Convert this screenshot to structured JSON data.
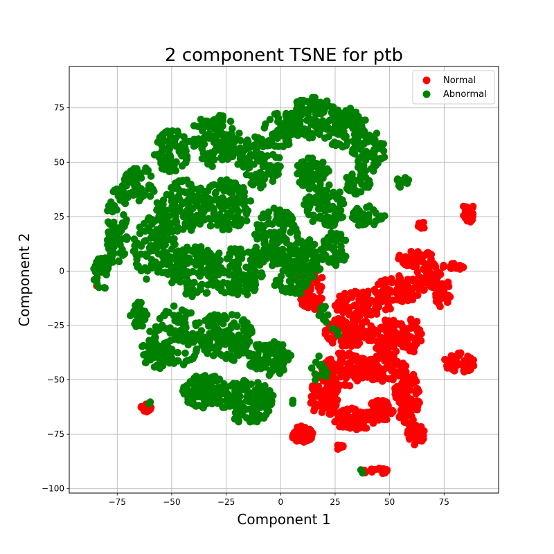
{
  "chart_data": {
    "type": "scatter",
    "title": "2 component TSNE for ptb",
    "xlabel": "Component 1",
    "ylabel": "Component 2",
    "xlim": [
      -97,
      100
    ],
    "ylim": [
      -102,
      94
    ],
    "xticks": [
      -75,
      -50,
      -25,
      0,
      25,
      50,
      75
    ],
    "yticks": [
      -100,
      -75,
      -50,
      -25,
      0,
      25,
      50,
      75
    ],
    "grid": true,
    "legend_position": "top-right",
    "series": [
      {
        "name": "Normal",
        "color": "#ff0000",
        "clusters": [
          {
            "cx": 14,
            "cy": -8,
            "rx": 6,
            "ry": 10,
            "n": 70
          },
          {
            "cx": 38,
            "cy": -15,
            "rx": 14,
            "ry": 6,
            "n": 90
          },
          {
            "cx": 32,
            "cy": -28,
            "rx": 12,
            "ry": 7,
            "n": 100
          },
          {
            "cx": 50,
            "cy": -30,
            "rx": 10,
            "ry": 8,
            "n": 90
          },
          {
            "cx": 30,
            "cy": -45,
            "rx": 12,
            "ry": 8,
            "n": 110
          },
          {
            "cx": 48,
            "cy": -45,
            "rx": 10,
            "ry": 7,
            "n": 80
          },
          {
            "cx": 20,
            "cy": -57,
            "rx": 7,
            "ry": 10,
            "n": 90
          },
          {
            "cx": 34,
            "cy": -68,
            "rx": 10,
            "ry": 5,
            "n": 80
          },
          {
            "cx": 46,
            "cy": -64,
            "rx": 6,
            "ry": 5,
            "n": 60
          },
          {
            "cx": 58,
            "cy": -58,
            "rx": 6,
            "ry": 12,
            "n": 90
          },
          {
            "cx": 62,
            "cy": -75,
            "rx": 4,
            "ry": 5,
            "n": 40
          },
          {
            "cx": 10,
            "cy": -75,
            "rx": 5,
            "ry": 4,
            "n": 50
          },
          {
            "cx": 44,
            "cy": -92,
            "rx": 6,
            "ry": 1.5,
            "n": 20
          },
          {
            "cx": 27,
            "cy": -81,
            "rx": 2,
            "ry": 1.5,
            "n": 8
          },
          {
            "cx": 55,
            "cy": -8,
            "rx": 12,
            "ry": 6,
            "n": 80
          },
          {
            "cx": 62,
            "cy": 6,
            "rx": 8,
            "ry": 4,
            "n": 40
          },
          {
            "cx": 68,
            "cy": -2,
            "rx": 6,
            "ry": 6,
            "n": 40
          },
          {
            "cx": 74,
            "cy": -10,
            "rx": 4,
            "ry": 7,
            "n": 30
          },
          {
            "cx": 79,
            "cy": 2,
            "rx": 5,
            "ry": 1.5,
            "n": 15
          },
          {
            "cx": 65,
            "cy": 21,
            "rx": 2,
            "ry": 1.5,
            "n": 8
          },
          {
            "cx": 60,
            "cy": -30,
            "rx": 5,
            "ry": 8,
            "n": 40
          },
          {
            "cx": 86,
            "cy": 27,
            "rx": 3,
            "ry": 5,
            "n": 30
          },
          {
            "cx": 82,
            "cy": -42,
            "rx": 7,
            "ry": 5,
            "n": 50
          },
          {
            "cx": -62,
            "cy": -63,
            "rx": 3,
            "ry": 2,
            "n": 12
          },
          {
            "cx": -84,
            "cy": -6,
            "rx": 1,
            "ry": 1,
            "n": 2
          }
        ]
      },
      {
        "name": "Abnormal",
        "color": "#008000",
        "clusters": [
          {
            "cx": -75,
            "cy": 20,
            "rx": 5,
            "ry": 18,
            "n": 80
          },
          {
            "cx": -82,
            "cy": 0,
            "rx": 4,
            "ry": 9,
            "n": 40
          },
          {
            "cx": -65,
            "cy": 40,
            "rx": 8,
            "ry": 8,
            "n": 60
          },
          {
            "cx": -58,
            "cy": 10,
            "rx": 10,
            "ry": 15,
            "n": 100
          },
          {
            "cx": -50,
            "cy": 55,
            "rx": 8,
            "ry": 10,
            "n": 70
          },
          {
            "cx": -45,
            "cy": 30,
            "rx": 12,
            "ry": 12,
            "n": 120
          },
          {
            "cx": -40,
            "cy": 0,
            "rx": 12,
            "ry": 12,
            "n": 130
          },
          {
            "cx": -48,
            "cy": -30,
            "rx": 12,
            "ry": 14,
            "n": 110
          },
          {
            "cx": -30,
            "cy": 60,
            "rx": 12,
            "ry": 12,
            "n": 120
          },
          {
            "cx": -25,
            "cy": 30,
            "rx": 12,
            "ry": 12,
            "n": 120
          },
          {
            "cx": -20,
            "cy": 0,
            "rx": 12,
            "ry": 12,
            "n": 130
          },
          {
            "cx": -25,
            "cy": -30,
            "rx": 12,
            "ry": 12,
            "n": 120
          },
          {
            "cx": -35,
            "cy": -55,
            "rx": 10,
            "ry": 8,
            "n": 100
          },
          {
            "cx": -15,
            "cy": -60,
            "rx": 12,
            "ry": 10,
            "n": 140
          },
          {
            "cx": -5,
            "cy": -40,
            "rx": 10,
            "ry": 8,
            "n": 90
          },
          {
            "cx": -10,
            "cy": 50,
            "rx": 10,
            "ry": 12,
            "n": 100
          },
          {
            "cx": 0,
            "cy": 65,
            "rx": 8,
            "ry": 8,
            "n": 60
          },
          {
            "cx": -2,
            "cy": 15,
            "rx": 10,
            "ry": 14,
            "n": 110
          },
          {
            "cx": 15,
            "cy": 70,
            "rx": 12,
            "ry": 10,
            "n": 100
          },
          {
            "cx": 30,
            "cy": 65,
            "rx": 10,
            "ry": 10,
            "n": 90
          },
          {
            "cx": 40,
            "cy": 55,
            "rx": 8,
            "ry": 10,
            "n": 70
          },
          {
            "cx": 15,
            "cy": 45,
            "rx": 8,
            "ry": 8,
            "n": 60
          },
          {
            "cx": 20,
            "cy": 30,
            "rx": 10,
            "ry": 10,
            "n": 90
          },
          {
            "cx": 10,
            "cy": 5,
            "rx": 10,
            "ry": 10,
            "n": 90
          },
          {
            "cx": 25,
            "cy": 10,
            "rx": 6,
            "ry": 8,
            "n": 50
          },
          {
            "cx": 40,
            "cy": 25,
            "rx": 8,
            "ry": 5,
            "n": 40
          },
          {
            "cx": 35,
            "cy": 40,
            "rx": 6,
            "ry": 5,
            "n": 30
          },
          {
            "cx": 56,
            "cy": 41,
            "rx": 3,
            "ry": 3,
            "n": 15
          },
          {
            "cx": 5,
            "cy": -5,
            "rx": 8,
            "ry": 6,
            "n": 40
          },
          {
            "cx": 20,
            "cy": -20,
            "rx": 3,
            "ry": 4,
            "n": 12
          },
          {
            "cx": 18,
            "cy": -45,
            "rx": 4,
            "ry": 6,
            "n": 12
          },
          {
            "cx": 25,
            "cy": -28,
            "rx": 2,
            "ry": 2,
            "n": 4
          },
          {
            "cx": 6,
            "cy": -60,
            "rx": 1,
            "ry": 1,
            "n": 2
          },
          {
            "cx": -60,
            "cy": -61,
            "rx": 1,
            "ry": 1,
            "n": 2
          },
          {
            "cx": 37,
            "cy": -92,
            "rx": 1,
            "ry": 1,
            "n": 2
          },
          {
            "cx": -58,
            "cy": -36,
            "rx": 6,
            "ry": 10,
            "n": 40
          },
          {
            "cx": -65,
            "cy": -20,
            "rx": 4,
            "ry": 6,
            "n": 25
          }
        ]
      }
    ]
  }
}
